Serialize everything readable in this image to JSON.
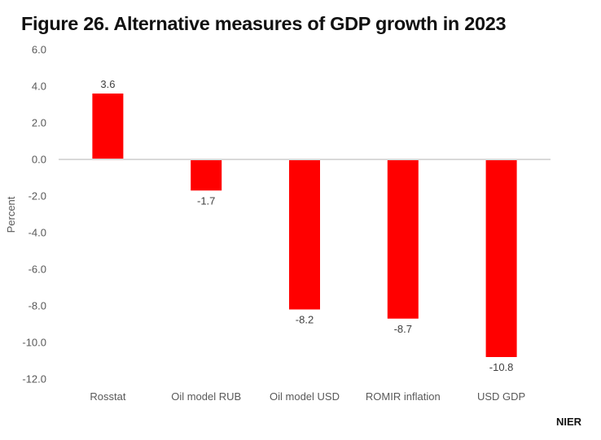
{
  "chart_data": {
    "type": "bar",
    "title": "Figure 26. Alternative measures of GDP growth in 2023",
    "xlabel": "",
    "ylabel": "Percent",
    "categories": [
      "Rosstat",
      "Oil model RUB",
      "Oil model USD",
      "ROMIR inflation",
      "USD GDP"
    ],
    "values": [
      3.6,
      -1.7,
      -8.2,
      -8.7,
      -10.8
    ],
    "data_labels": [
      "3.6",
      "-1.7",
      "-8.2",
      "-8.7",
      "-10.8"
    ],
    "ylim": [
      -12.0,
      6.0
    ],
    "yticks": [
      6.0,
      4.0,
      2.0,
      0.0,
      -2.0,
      -4.0,
      -6.0,
      -8.0,
      -10.0,
      -12.0
    ],
    "ytick_labels": [
      "6.0",
      "4.0",
      "2.0",
      "0.0",
      "-2.0",
      "-4.0",
      "-6.0",
      "-8.0",
      "-10.0",
      "-12.0"
    ],
    "grid": false,
    "legend": "none",
    "bar_color": "#ff0000",
    "zero_line_color": "#d9d9d9"
  },
  "source_label": "NIER"
}
